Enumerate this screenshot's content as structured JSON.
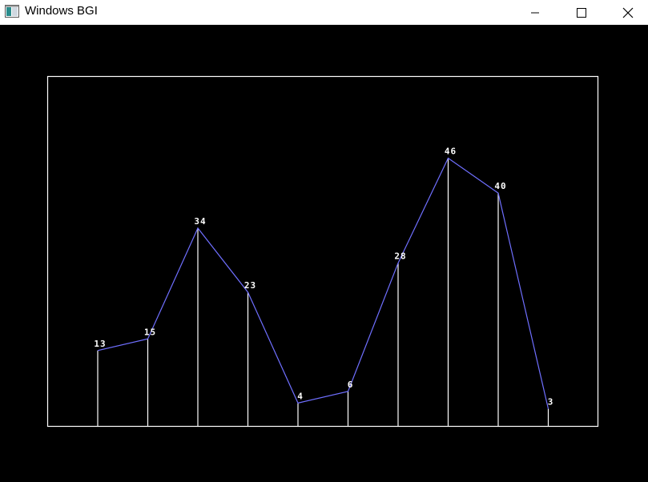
{
  "window": {
    "title": "Windows BGI",
    "controls": {
      "minimize": "minimize",
      "maximize": "maximize",
      "close": "close"
    }
  },
  "colors": {
    "background": "#000000",
    "frame": "#ffffff",
    "line": "#6f6fff",
    "bars": "#ffffff",
    "labels": "#ffffff"
  },
  "chart_data": {
    "type": "line",
    "values": [
      13,
      15,
      34,
      23,
      4,
      6,
      28,
      46,
      40,
      3
    ],
    "data_labels": [
      "13",
      "15",
      "34",
      "23",
      "4",
      "6",
      "28",
      "46",
      "40",
      "3"
    ],
    "ylim": [
      0,
      60
    ],
    "grid": false,
    "drop_lines": true
  }
}
